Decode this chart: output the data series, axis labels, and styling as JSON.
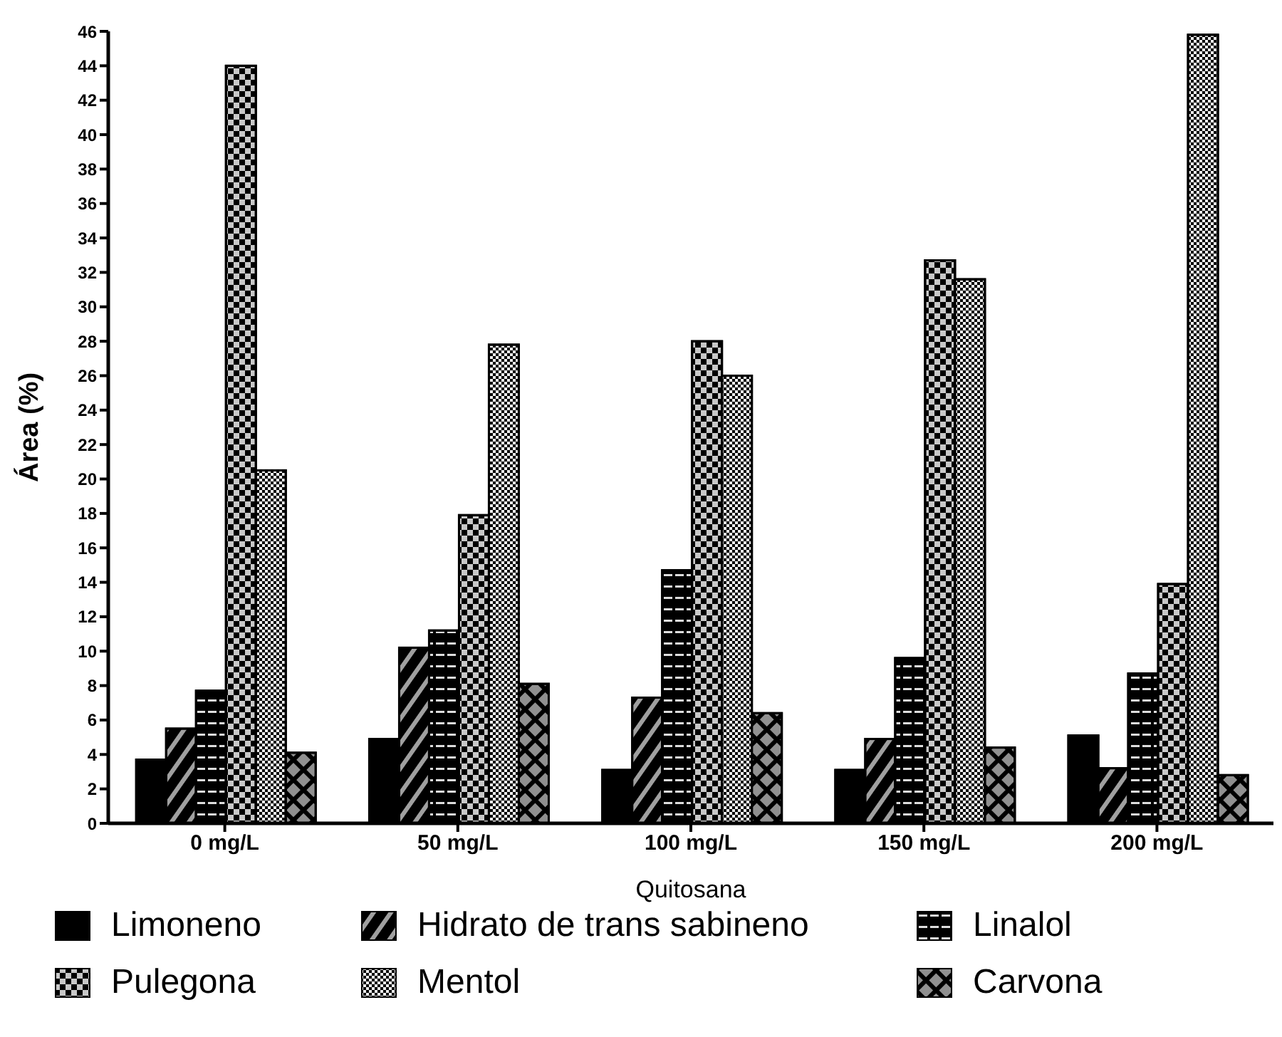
{
  "chart_data": {
    "type": "bar",
    "xlabel": "Quitosana",
    "ylabel": "Área (%)",
    "categories": [
      "0 mg/L",
      "50 mg/L",
      "100 mg/L",
      "150 mg/L",
      "200 mg/L"
    ],
    "series": [
      {
        "name": "Limoneno",
        "color": "#000000",
        "values": [
          3.7,
          4.9,
          3.1,
          3.1,
          5.1
        ]
      },
      {
        "name": "Hidrato de trans sabineno",
        "color": "#a0a0a0",
        "values": [
          5.5,
          10.2,
          7.3,
          4.9,
          3.2
        ]
      },
      {
        "name": "Linalol",
        "color": "#dddddd",
        "values": [
          7.7,
          11.2,
          14.7,
          9.6,
          8.7
        ]
      },
      {
        "name": "Pulegona",
        "color": "#c8c8c8",
        "values": [
          44,
          17.9,
          28,
          32.7,
          13.9
        ]
      },
      {
        "name": "Mentol",
        "color": "#eeeeee",
        "values": [
          20.5,
          27.8,
          26,
          31.6,
          45.8
        ]
      },
      {
        "name": "Carvona",
        "color": "#909090",
        "values": [
          4.1,
          8.1,
          6.4,
          4.4,
          2.8
        ]
      }
    ],
    "ylim": [
      0,
      46
    ],
    "yticks": [
      0,
      2,
      4,
      6,
      8,
      10,
      12,
      14,
      16,
      18,
      20,
      22,
      24,
      26,
      28,
      30,
      32,
      34,
      36,
      38,
      40,
      42,
      44,
      46
    ],
    "grid": false,
    "legend": "bottom"
  }
}
